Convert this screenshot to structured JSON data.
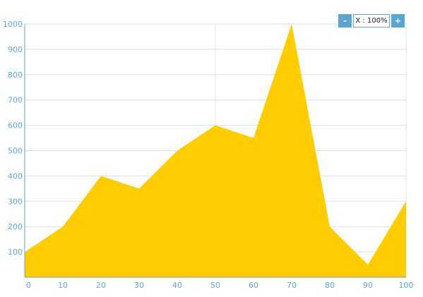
{
  "colors": {
    "area": "#ffcc00",
    "grid": "#cfe3ee",
    "axis": "#5aa6d1",
    "tick_text": "#5aa6d1",
    "button": "#5aa6d1"
  },
  "zoom": {
    "minus_label": "-",
    "value_label": "X : 100%",
    "plus_label": "+"
  },
  "chart_data": {
    "type": "area",
    "title": "",
    "xlabel": "",
    "ylabel": "",
    "x": [
      0,
      10,
      20,
      30,
      40,
      50,
      60,
      70,
      80,
      90,
      100
    ],
    "series": [
      {
        "values": [
          100,
          200,
          400,
          350,
          500,
          600,
          550,
          1000,
          200,
          50,
          300
        ]
      }
    ],
    "xlim": [
      0,
      100
    ],
    "ylim": [
      0,
      1000
    ],
    "x_ticks": [
      0,
      10,
      20,
      30,
      40,
      50,
      60,
      70,
      80,
      90,
      100
    ],
    "y_ticks": [
      100,
      200,
      300,
      400,
      500,
      600,
      700,
      800,
      900,
      1000
    ],
    "grid": true,
    "legend": "none"
  }
}
